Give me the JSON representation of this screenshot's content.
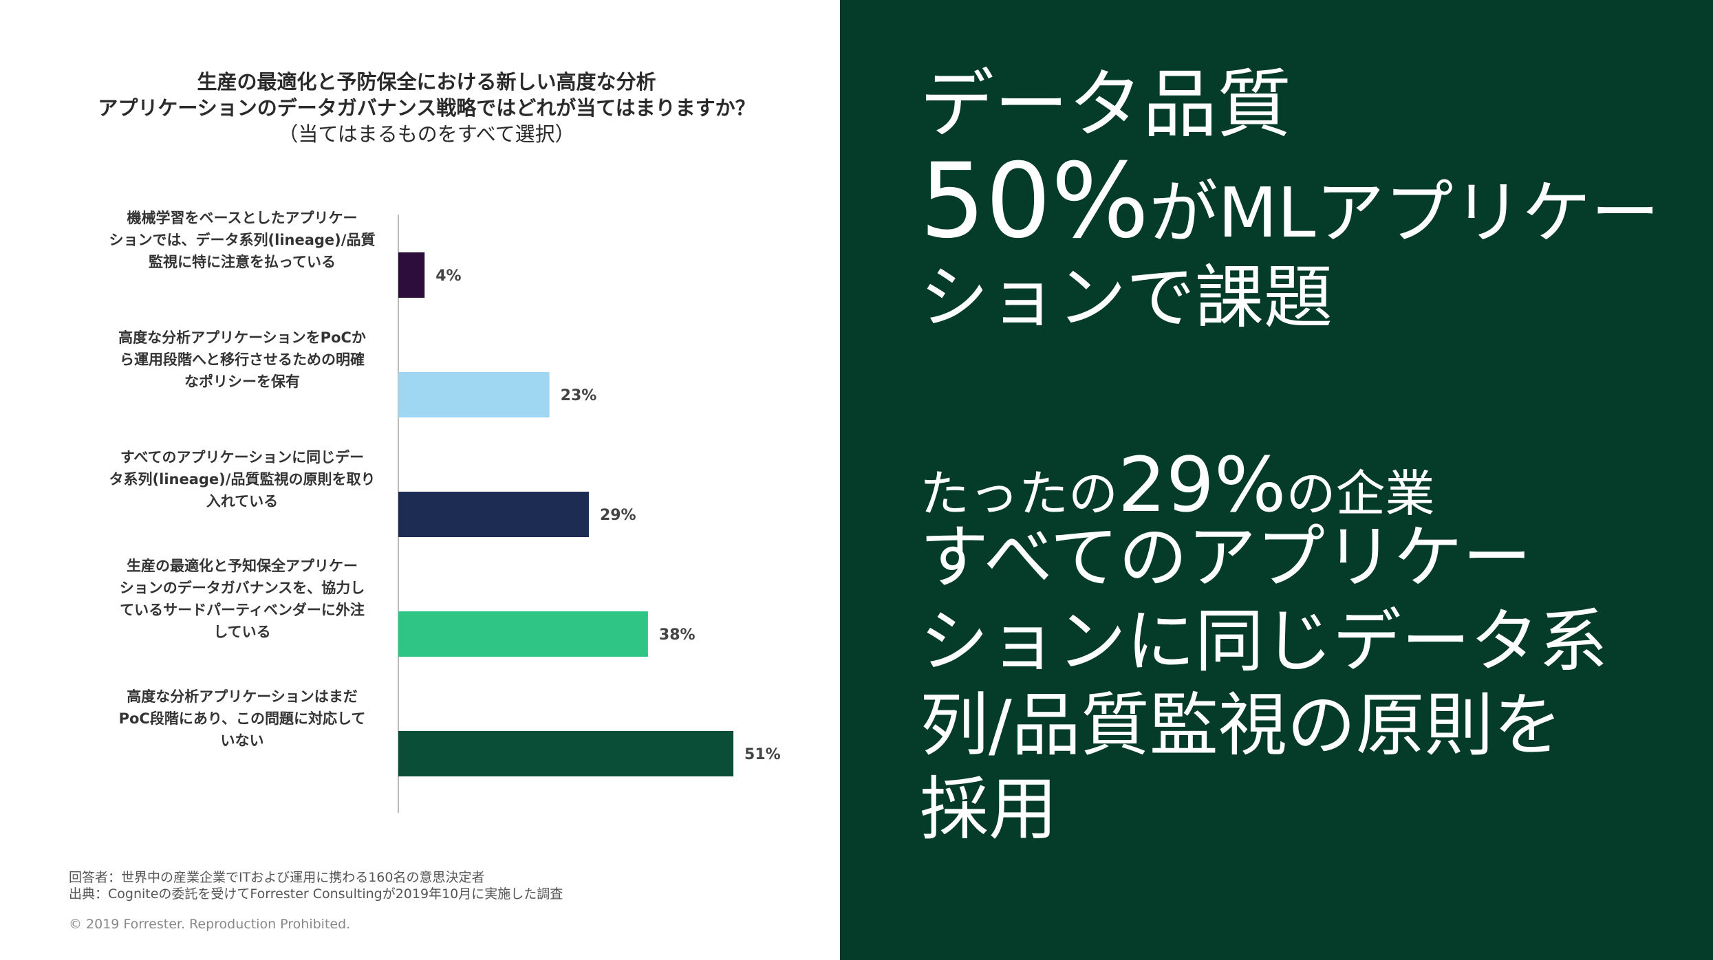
{
  "chart_title": {
    "line1": "生産の最適化と予防保全における新しい高度な分析",
    "line2": "アプリケーションのデータガバナンス戦略ではどれが当てはまりますか？",
    "line3": "（当てはまるものをすべて選択）"
  },
  "chart_data": {
    "type": "bar",
    "orientation": "horizontal",
    "categories": [
      [
        "機械学習をベースとしたアプリケー",
        "ションでは、データ系列(lineage)/品質",
        "監視に特に注意を払っている"
      ],
      [
        "高度な分析アプリケーションをPoCか",
        "ら運用段階へと移行させるための明確",
        "なポリシーを保有"
      ],
      [
        "すべてのアプリケーションに同じデー",
        "タ系列(lineage)/品質監視の原則を取り",
        "入れている"
      ],
      [
        "生産の最適化と予知保全アプリケー",
        "ションのデータガバナンスを、協力し",
        "ているサードパーティベンダーに外注",
        "している"
      ],
      [
        "高度な分析アプリケーションはまだ",
        "PoC段階にあり、この問題に対応して",
        "いない"
      ]
    ],
    "values": [
      4,
      23,
      29,
      38,
      51
    ],
    "value_labels": [
      "4%",
      "23%",
      "29%",
      "38%",
      "51%"
    ],
    "colors": [
      "#2d0e3a",
      "#9fd7f3",
      "#1d2c52",
      "#2fc685",
      "#0a4e38"
    ],
    "xlim": [
      0,
      100
    ],
    "grid": false
  },
  "notes": {
    "respondents": "回答者：世界中の産業企業でITおよび運用に携わる160名の意思決定者",
    "source": "出典：Cogniteの委託を受けてForrester Consultingが2019年10月に実施した調査",
    "copyright": "© 2019 Forrester. Reproduction Prohibited."
  },
  "headline": {
    "title": "データ品質",
    "stat1_number": "50%",
    "stat1_rest": "がMLアプリケー",
    "stat1_line2": "ションで課題",
    "stat2_prefix": "たったの",
    "stat2_number": "29%",
    "stat2_suffix": "の企業",
    "body_lines": [
      "すべてのアプリケー",
      "ションに同じデータ系",
      "列/品質監視の原則を",
      "採用"
    ]
  }
}
